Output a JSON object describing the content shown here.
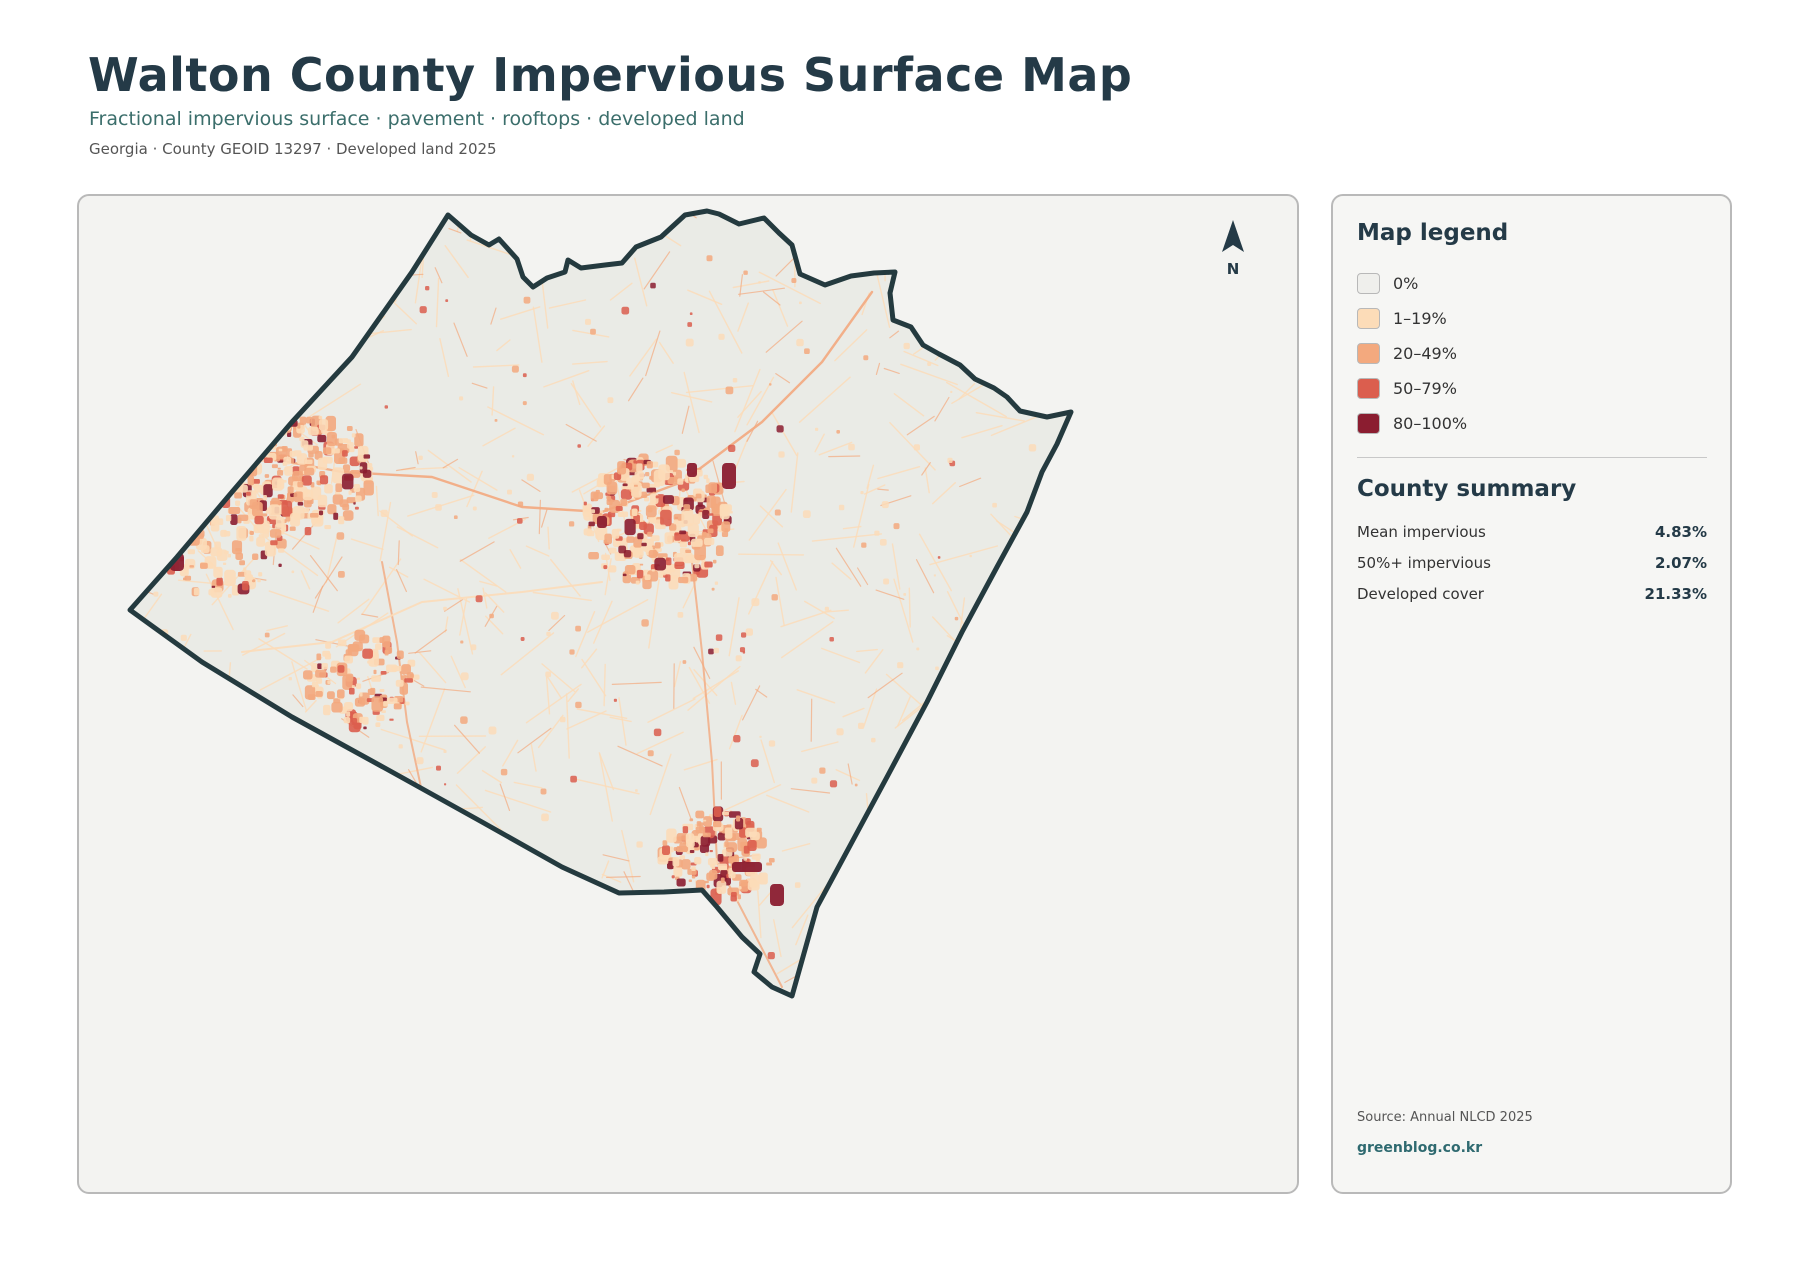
{
  "header": {
    "title": "Walton County Impervious Surface Map",
    "subtitle": "Fractional impervious surface · pavement · rooftops · developed land",
    "meta": "Georgia · County GEOID 13297 · Developed land 2025"
  },
  "map": {
    "north_label": "N",
    "boundary_color": "#243a3f",
    "land_color": "#eaebe6"
  },
  "legend": {
    "title": "Map legend",
    "items": [
      {
        "label": "0%",
        "color": "#efefec"
      },
      {
        "label": "1–19%",
        "color": "#fcdcb8"
      },
      {
        "label": "20–49%",
        "color": "#f3a97e"
      },
      {
        "label": "50–79%",
        "color": "#db5e4e"
      },
      {
        "label": "80–100%",
        "color": "#8b1d30"
      }
    ]
  },
  "summary": {
    "title": "County summary",
    "rows": [
      {
        "label": "Mean impervious",
        "value": "4.83%"
      },
      {
        "label": "50%+ impervious",
        "value": "2.07%"
      },
      {
        "label": "Developed cover",
        "value": "21.33%"
      }
    ]
  },
  "footer": {
    "source": "Source: Annual NLCD 2025",
    "site": "greenblog.co.kr"
  }
}
